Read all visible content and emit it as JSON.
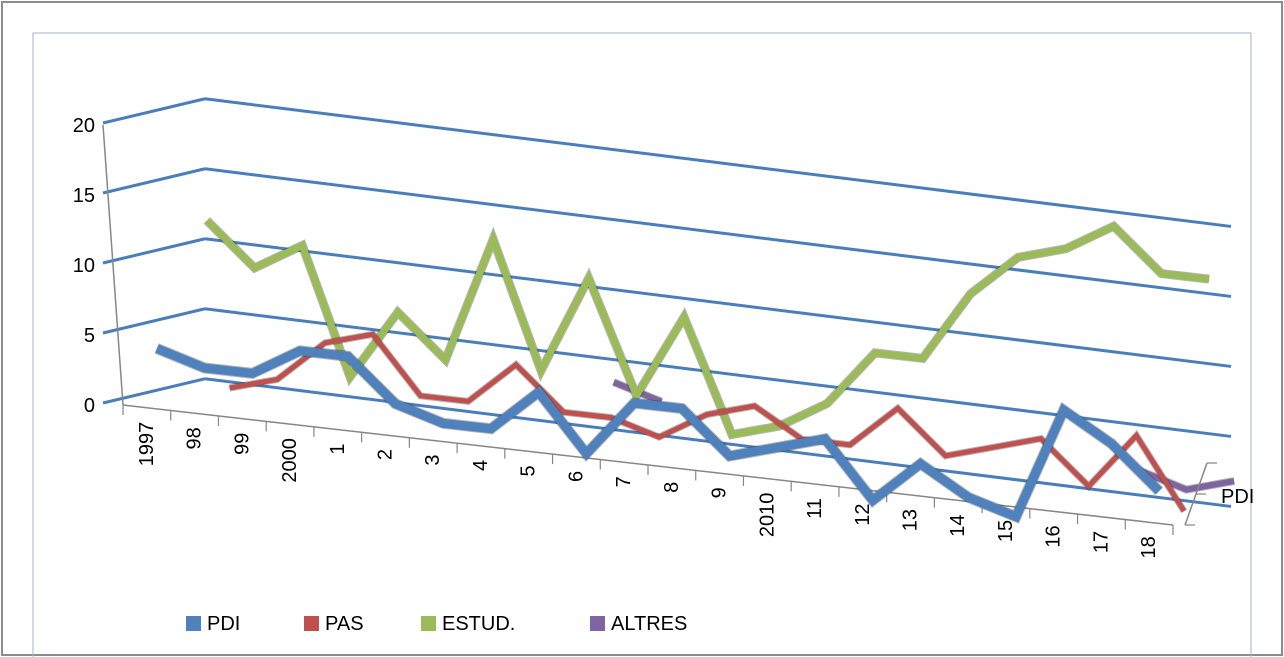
{
  "chart_data": {
    "type": "line",
    "style": "3d-ribbon",
    "categories": [
      "1997",
      "98",
      "99",
      "2000",
      "1",
      "2",
      "3",
      "4",
      "5",
      "6",
      "7",
      "8",
      "9",
      "2010",
      "11",
      "12",
      "13",
      "14",
      "15",
      "16",
      "17",
      "18"
    ],
    "yticks": [
      0,
      5,
      10,
      15,
      20
    ],
    "ylim": [
      0,
      20
    ],
    "depth_label": "PDI",
    "legend_position": "bottom",
    "grid": true,
    "series": [
      {
        "name": "PDI",
        "color": "#4f81bd",
        "width": 9,
        "values": [
          4,
          3,
          3,
          5,
          5,
          2,
          1,
          1,
          4,
          0,
          4,
          4,
          1,
          2,
          3,
          -1,
          2,
          0,
          -1,
          7,
          5,
          2
        ]
      },
      {
        "name": "PAS",
        "color": "#c0504d",
        "width": 5,
        "values": [
          null,
          1,
          2,
          5,
          6,
          2,
          2,
          5,
          2,
          2,
          1,
          3,
          4,
          2,
          2,
          5,
          2,
          3,
          4,
          1,
          5,
          0
        ]
      },
      {
        "name": "ESTUD.",
        "color": "#9bbb59",
        "width": 7,
        "values": [
          12,
          9,
          11,
          2,
          7,
          4,
          13,
          4,
          11,
          3,
          9,
          1,
          2,
          4,
          8,
          8,
          13,
          16,
          17,
          19,
          16,
          16
        ]
      },
      {
        "name": "ALTRES",
        "color": "#8064a2",
        "width": 6,
        "values": [
          null,
          null,
          null,
          null,
          null,
          null,
          null,
          null,
          3,
          2,
          null,
          null,
          null,
          null,
          null,
          null,
          null,
          null,
          null,
          1,
          0,
          1
        ]
      }
    ]
  }
}
